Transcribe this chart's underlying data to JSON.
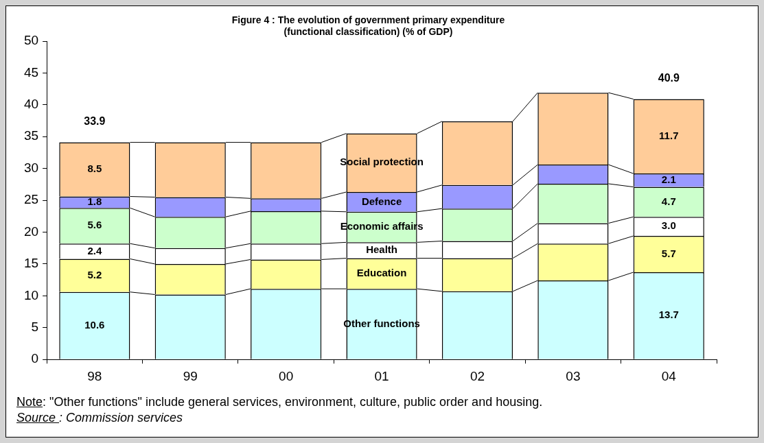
{
  "chart_data": {
    "type": "bar",
    "stacked": true,
    "title": "Figure 4 : The evolution of government primary expenditure\n(functional classification) (% of GDP)",
    "categories": [
      "98",
      "99",
      "00",
      "01",
      "02",
      "03",
      "04"
    ],
    "ylim": [
      0,
      50
    ],
    "yticks": [
      0,
      5,
      10,
      15,
      20,
      25,
      30,
      35,
      40,
      45,
      50
    ],
    "grid": false,
    "legend": false,
    "series": [
      {
        "name": "Other functions",
        "color": "#ccffff",
        "values": [
          10.6,
          10.2,
          11.1,
          11.1,
          10.7,
          12.4,
          13.7
        ],
        "value_labels": [
          "10.6",
          null,
          null,
          null,
          null,
          null,
          "13.7"
        ]
      },
      {
        "name": "Education",
        "color": "#ffff99",
        "values": [
          5.2,
          4.8,
          4.6,
          4.8,
          5.2,
          5.8,
          5.7
        ],
        "value_labels": [
          "5.2",
          null,
          null,
          null,
          null,
          null,
          "5.7"
        ]
      },
      {
        "name": "Health",
        "color": "#ffffff",
        "values": [
          2.4,
          2.5,
          2.5,
          2.5,
          2.7,
          3.2,
          3.0
        ],
        "value_labels": [
          "2.4",
          null,
          null,
          null,
          null,
          null,
          "3.0"
        ]
      },
      {
        "name": "Economic affairs",
        "color": "#ccffcc",
        "values": [
          5.6,
          4.9,
          5.1,
          4.8,
          5.1,
          6.2,
          4.7
        ],
        "value_labels": [
          "5.6",
          null,
          null,
          null,
          null,
          null,
          "4.7"
        ]
      },
      {
        "name": "Defence",
        "color": "#9999ff",
        "values": [
          1.8,
          3.1,
          2.0,
          3.1,
          3.7,
          3.0,
          2.1
        ],
        "value_labels": [
          "1.8",
          null,
          null,
          null,
          null,
          null,
          "2.1"
        ]
      },
      {
        "name": "Social protection",
        "color": "#ffcc99",
        "values": [
          8.5,
          8.6,
          8.8,
          9.2,
          10.0,
          11.3,
          11.7
        ],
        "value_labels": [
          "8.5",
          null,
          null,
          null,
          null,
          null,
          "11.7"
        ]
      }
    ],
    "totals": [
      "33.9",
      null,
      null,
      null,
      null,
      null,
      "40.9"
    ],
    "annotations": [
      "Note: \"Other functions\" include general services, environment, culture, public order and housing.",
      "Source : Commission services"
    ]
  }
}
